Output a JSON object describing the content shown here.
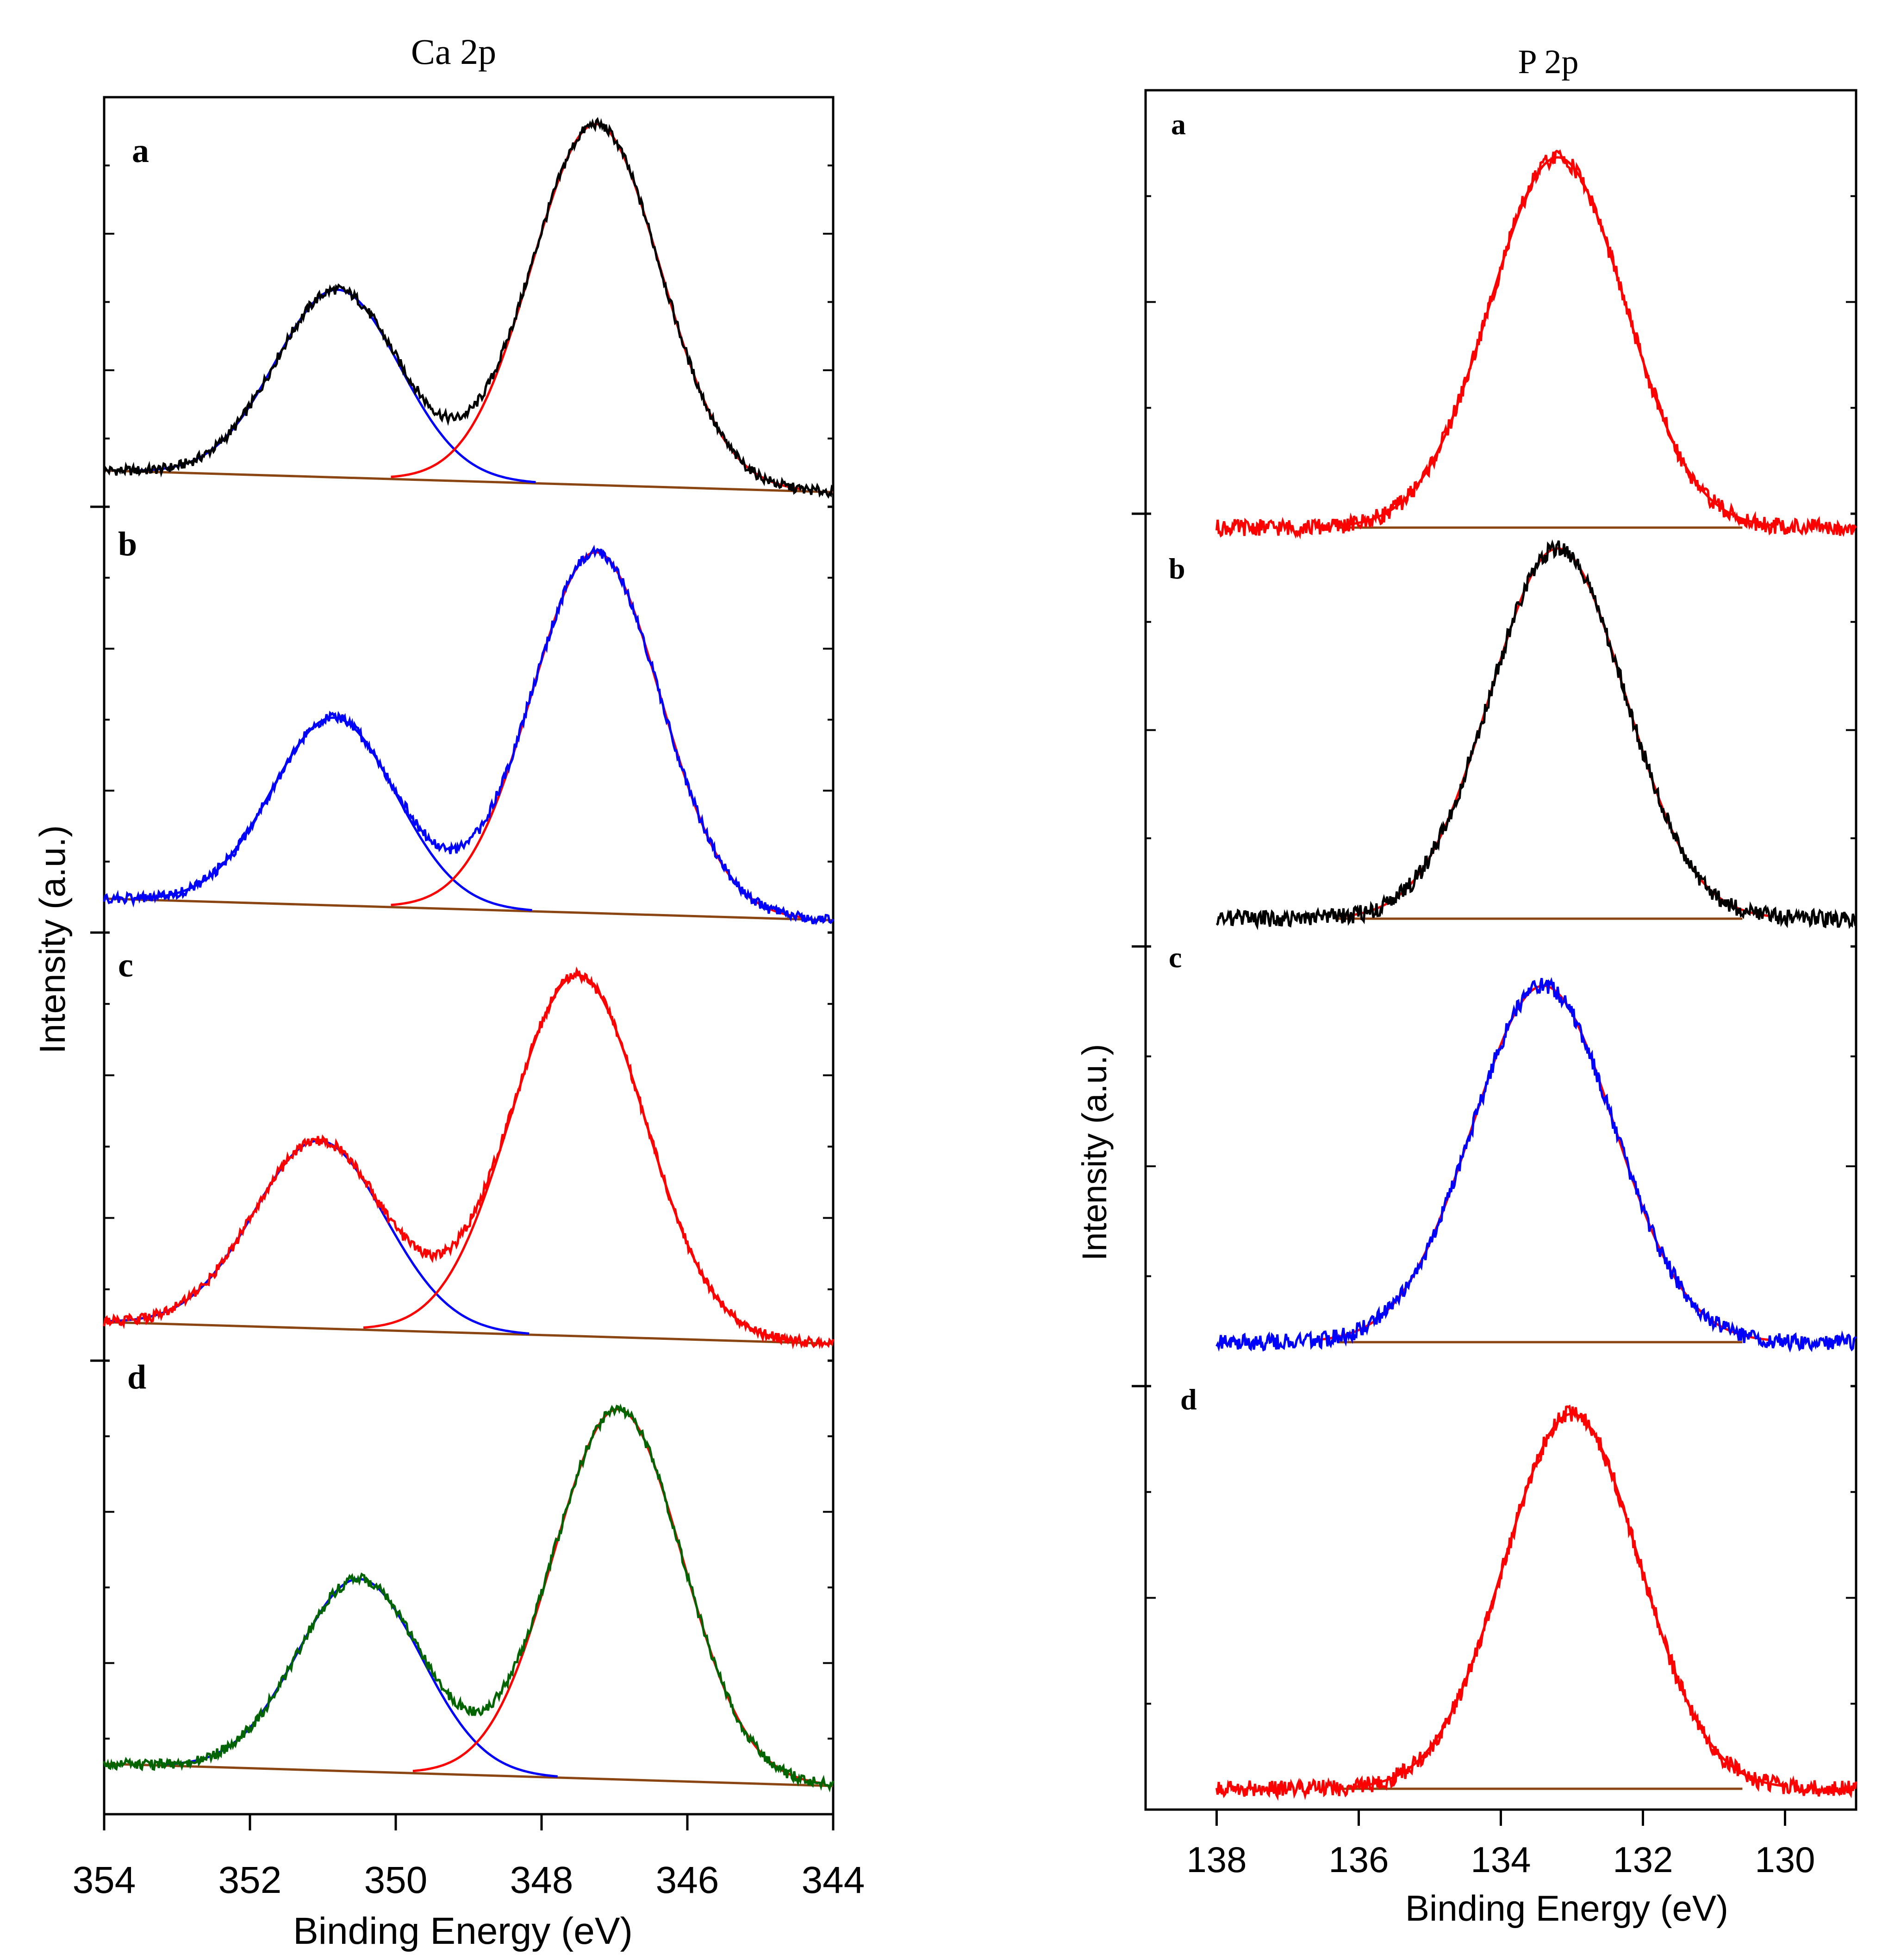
{
  "chart_data": [
    {
      "id": "ca2p",
      "type": "line",
      "title": "Ca 2p",
      "xlabel": "Binding Energy (eV)",
      "ylabel": "Intensity (a.u.)",
      "xlim": [
        354,
        344
      ],
      "x_reversed": true,
      "xticks": [
        354,
        352,
        350,
        348,
        346,
        344
      ],
      "tick_labels": [
        "354",
        "352",
        "350",
        "348",
        "346",
        "344"
      ],
      "panels": [
        {
          "label": "a",
          "background": [
            0.03,
            -0.03
          ],
          "peaks": [
            {
              "center": 350.8,
              "height": 0.52,
              "width": 0.85
            },
            {
              "center": 347.25,
              "height": 1.0,
              "width": 0.88
            }
          ],
          "colors": {
            "data": "#000000",
            "peak1": "#0000ff",
            "peak2": "#ff0000",
            "baseline": "#8b4513"
          }
        },
        {
          "label": "b",
          "background": [
            0.03,
            -0.03
          ],
          "peaks": [
            {
              "center": 350.85,
              "height": 0.52,
              "width": 0.85
            },
            {
              "center": 347.25,
              "height": 1.0,
              "width": 0.88
            }
          ],
          "colors": {
            "data": "#0000ff",
            "peak1": "#0000ff",
            "peak2": "#ff0000",
            "baseline": "#8b4513"
          }
        },
        {
          "label": "c",
          "background": [
            0.03,
            -0.03
          ],
          "peaks": [
            {
              "center": 351.05,
              "height": 0.52,
              "width": 0.9
            },
            {
              "center": 347.5,
              "height": 1.0,
              "width": 0.92
            }
          ],
          "colors": {
            "data": "#ff0000",
            "peak1": "#0000ff",
            "peak2": "#ff0000",
            "baseline": "#8b4513"
          }
        },
        {
          "label": "d",
          "background": [
            0.03,
            -0.03
          ],
          "peaks": [
            {
              "center": 350.5,
              "height": 0.52,
              "width": 0.85
            },
            {
              "center": 346.95,
              "height": 1.0,
              "width": 0.88
            }
          ],
          "colors": {
            "data": "#006400",
            "peak1": "#0000ff",
            "peak2": "#ff0000",
            "baseline": "#8b4513"
          }
        }
      ]
    },
    {
      "id": "p2p",
      "type": "line",
      "title": "P 2p",
      "xlabel": "Binding Energy (eV)",
      "ylabel": "Intensity (a.u.)",
      "xlim": [
        139,
        129
      ],
      "x_reversed": true,
      "xticks": [
        138,
        136,
        134,
        132,
        130
      ],
      "tick_labels": [
        "138",
        "136",
        "134",
        "132",
        "130"
      ],
      "panels": [
        {
          "label": "a",
          "background": [
            0.0,
            0.0
          ],
          "peaks": [
            {
              "center": 133.2,
              "height": 1.0,
              "width": 0.95
            }
          ],
          "colors": {
            "data": "#ff0000",
            "peak1": "#ff0000",
            "baseline": "#8b4513"
          }
        },
        {
          "label": "b",
          "background": [
            0.0,
            0.0
          ],
          "peaks": [
            {
              "center": 133.2,
              "height": 1.0,
              "width": 0.95
            }
          ],
          "colors": {
            "data": "#000000",
            "peak1": "#ff0000",
            "baseline": "#8b4513"
          }
        },
        {
          "label": "c",
          "background": [
            0.0,
            0.0
          ],
          "peaks": [
            {
              "center": 133.4,
              "height": 1.0,
              "width": 1.0
            }
          ],
          "colors": {
            "data": "#0000ff",
            "peak1": "#ff0000",
            "baseline": "#8b4513"
          }
        },
        {
          "label": "d",
          "background": [
            0.0,
            0.0
          ],
          "peaks": [
            {
              "center": 133.0,
              "height": 1.0,
              "width": 0.95
            }
          ],
          "colors": {
            "data": "#ff0000",
            "peak1": "#ff0000",
            "baseline": "#8b4513"
          }
        }
      ]
    }
  ]
}
